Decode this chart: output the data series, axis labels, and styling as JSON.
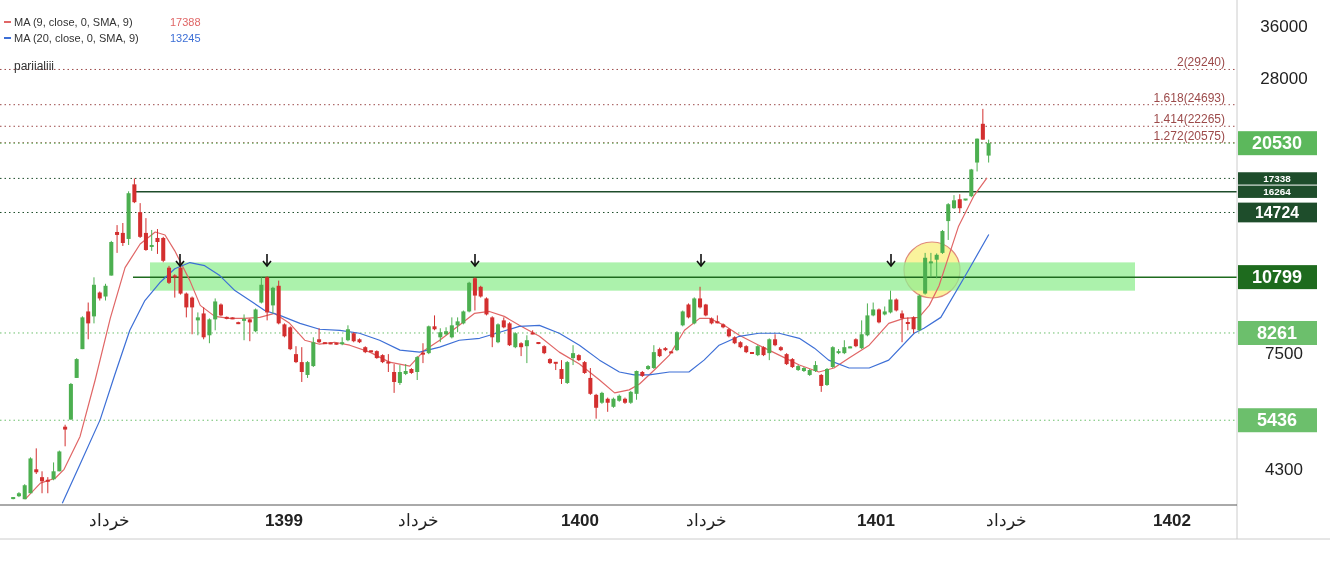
{
  "chart_data": {
    "type": "candlestick",
    "log": true,
    "legend": "top left",
    "xlim": [
      1398.0405,
      1402.2196
    ],
    "xticks": [
      {
        "value": 1398.412,
        "label": "خرداد"
      },
      1399,
      {
        "value": 1399.453,
        "label": "خرداد"
      },
      1400,
      {
        "value": 1400.426,
        "label": "خرداد"
      },
      1401,
      {
        "value": 1401.44,
        "label": "خرداد"
      },
      1402
    ],
    "ylim": [
      3620,
      40800
    ],
    "yticks": [
      36000,
      28000,
      7500,
      4300
    ],
    "x": [
      1398.085,
      1398.1045,
      1398.124,
      1398.1435,
      1398.163,
      1398.1825,
      1398.202,
      1398.2215,
      1398.241,
      1398.2605,
      1398.28,
      1398.2995,
      1398.319,
      1398.3385,
      1398.358,
      1398.3775,
      1398.397,
      1398.4165,
      1398.436,
      1398.4555,
      1398.475,
      1398.4945,
      1398.514,
      1398.5335,
      1398.553,
      1398.5725,
      1398.592,
      1398.6115,
      1398.631,
      1398.6505,
      1398.67,
      1398.6895,
      1398.709,
      1398.7285,
      1398.748,
      1398.7675,
      1398.787,
      1398.8065,
      1398.826,
      1398.8455,
      1398.865,
      1398.8845,
      1398.904,
      1398.9235,
      1398.943,
      1398.9625,
      1398.982,
      1399.0015,
      1399.021,
      1399.0405,
      1399.06,
      1399.0795,
      1399.099,
      1399.1185,
      1399.138,
      1399.1575,
      1399.177,
      1399.1965,
      1399.216,
      1399.2355,
      1399.255,
      1399.2745,
      1399.294,
      1399.3135,
      1399.333,
      1399.3525,
      1399.372,
      1399.3915,
      1399.411,
      1399.4305,
      1399.45,
      1399.4695,
      1399.489,
      1399.5085,
      1399.528,
      1399.5475,
      1399.567,
      1399.5865,
      1399.606,
      1399.6255,
      1399.645,
      1399.6645,
      1399.684,
      1399.7035,
      1399.723,
      1399.7425,
      1399.762,
      1399.7815,
      1399.801,
      1399.8205,
      1399.84,
      1399.8595,
      1399.879,
      1399.8985,
      1399.918,
      1399.9375,
      1399.957,
      1399.9765,
      1399.996,
      1400.0155,
      1400.035,
      1400.0545,
      1400.074,
      1400.0935,
      1400.113,
      1400.1325,
      1400.152,
      1400.1715,
      1400.191,
      1400.2105,
      1400.23,
      1400.2495,
      1400.269,
      1400.2885,
      1400.308,
      1400.3275,
      1400.347,
      1400.3665,
      1400.386,
      1400.4055,
      1400.425,
      1400.4445,
      1400.464,
      1400.4835,
      1400.503,
      1400.5225,
      1400.542,
      1400.5615,
      1400.581,
      1400.6005,
      1400.62,
      1400.6395,
      1400.659,
      1400.6785,
      1400.698,
      1400.7175,
      1400.737,
      1400.7565,
      1400.776,
      1400.7955,
      1400.815,
      1400.8345,
      1400.854,
      1400.8735,
      1400.893,
      1400.9125,
      1400.932,
      1400.9515,
      1400.971,
      1400.9905,
      1401.01,
      1401.0295,
      1401.049,
      1401.0685,
      1401.088,
      1401.1075,
      1401.127,
      1401.1465,
      1401.166,
      1401.1855,
      1401.205,
      1401.2245,
      1401.244,
      1401.2635,
      1401.283,
      1401.3025,
      1401.322,
      1401.3415,
      1401.361,
      1401.3805
    ],
    "colors": [
      "#4caf50",
      "#4caf50",
      "#4caf50",
      "#4caf50",
      "#d32f2f",
      "#d32f2f",
      "#d32f2f",
      "#4caf50",
      "#4caf50",
      "#d32f2f",
      "#4caf50",
      "#4caf50",
      "#4caf50",
      "#d32f2f",
      "#4caf50",
      "#d32f2f",
      "#4caf50",
      "#4caf50",
      "#d32f2f",
      "#d32f2f",
      "#4caf50",
      "#d32f2f",
      "#d32f2f",
      "#d32f2f",
      "#4caf50",
      "#d32f2f",
      "#d32f2f",
      "#d32f2f",
      "#d32f2f",
      "#d32f2f",
      "#d32f2f",
      "#d32f2f",
      "#4caf50",
      "#d32f2f",
      "#4caf50",
      "#4caf50",
      "#d32f2f",
      "#d32f2f",
      "#d32f2f",
      "#d32f2f",
      "#4caf50",
      "#d32f2f",
      "#4caf50",
      "#4caf50",
      "#d32f2f",
      "#4caf50",
      "#d32f2f",
      "#d32f2f",
      "#d32f2f",
      "#d32f2f",
      "#d32f2f",
      "#4caf50",
      "#4caf50",
      "#d32f2f",
      "#d32f2f",
      "#d32f2f",
      "#d32f2f",
      "#4caf50",
      "#4caf50",
      "#d32f2f",
      "#d32f2f",
      "#d32f2f",
      "#d32f2f",
      "#d32f2f",
      "#d32f2f",
      "#d32f2f",
      "#d32f2f",
      "#4caf50",
      "#4caf50",
      "#d32f2f",
      "#4caf50",
      "#d32f2f",
      "#4caf50",
      "#d32f2f",
      "#4caf50",
      "#4caf50",
      "#4caf50",
      "#4caf50",
      "#4caf50",
      "#4caf50",
      "#d32f2f",
      "#d32f2f",
      "#d32f2f",
      "#d32f2f",
      "#4caf50",
      "#d32f2f",
      "#d32f2f",
      "#4caf50",
      "#d32f2f",
      "#4caf50",
      "#d32f2f",
      "#d32f2f",
      "#d32f2f",
      "#d32f2f",
      "#d32f2f",
      "#d32f2f",
      "#4caf50",
      "#4caf50",
      "#d32f2f",
      "#d32f2f",
      "#d32f2f",
      "#d32f2f",
      "#4caf50",
      "#d32f2f",
      "#4caf50",
      "#4caf50",
      "#d32f2f",
      "#4caf50",
      "#4caf50",
      "#d32f2f",
      "#4caf50",
      "#4caf50",
      "#d32f2f",
      "#d32f2f",
      "#d32f2f",
      "#4caf50",
      "#4caf50",
      "#d32f2f",
      "#4caf50",
      "#d32f2f",
      "#d32f2f",
      "#d32f2f",
      "#d32f2f",
      "#d32f2f",
      "#d32f2f",
      "#d32f2f",
      "#d32f2f",
      "#d32f2f",
      "#d32f2f",
      "#4caf50",
      "#d32f2f",
      "#4caf50",
      "#d32f2f",
      "#d32f2f",
      "#d32f2f",
      "#d32f2f",
      "#4caf50",
      "#4caf50",
      "#4caf50",
      "#4caf50",
      "#d32f2f",
      "#4caf50",
      "#4caf50",
      "#4caf50",
      "#4caf50",
      "#4caf50",
      "#d32f2f",
      "#4caf50",
      "#4caf50",
      "#4caf50",
      "#d32f2f",
      "#4caf50",
      "#4caf50",
      "#d32f2f",
      "#d32f2f",
      "#d32f2f",
      "#d32f2f",
      "#4caf50",
      "#4caf50",
      "#4caf50",
      "#4caf50",
      "#4caf50",
      "#4caf50",
      "#4caf50",
      "#d32f2f",
      "#4caf50",
      "#4caf50",
      "#4caf50",
      "#d32f2f",
      "#4caf50"
    ],
    "ohlc": [
      [
        3740,
        3760,
        3720,
        3745
      ],
      [
        3776,
        3850,
        3760,
        3830
      ],
      [
        3722,
        4000,
        3722,
        3980
      ],
      [
        3830,
        4550,
        3830,
        4526
      ],
      [
        4296,
        4750,
        4200,
        4235
      ],
      [
        4137,
        4255,
        3830,
        4056
      ],
      [
        4076,
        4137,
        3830,
        4056
      ],
      [
        4095,
        4440,
        4076,
        4255
      ],
      [
        4255,
        4700,
        4255,
        4680
      ],
      [
        5270,
        5320,
        4797,
        5198
      ],
      [
        5452,
        6500,
        5452,
        6469
      ],
      [
        6659,
        7320,
        6659,
        7289
      ],
      [
        7645,
        8950,
        7645,
        8903
      ],
      [
        9160,
        9560,
        8015,
        8651
      ],
      [
        8946,
        10790,
        8651,
        10410
      ],
      [
        10030,
        10080,
        9653,
        9750
      ],
      [
        9840,
        10460,
        9653,
        10360
      ],
      [
        10880,
        12850,
        10880,
        12780
      ],
      [
        13410,
        13860,
        12130,
        13220
      ],
      [
        13350,
        14000,
        12540,
        12720
      ],
      [
        12970,
        16300,
        12600,
        16150
      ],
      [
        16850,
        17340,
        15400,
        15470
      ],
      [
        14750,
        15400,
        13030,
        13100
      ],
      [
        13350,
        14330,
        12250,
        12300
      ],
      [
        12480,
        13540,
        12250,
        12600
      ],
      [
        13030,
        13600,
        12070,
        12780
      ],
      [
        13030,
        13100,
        11600,
        11680
      ],
      [
        11300,
        11400,
        10450,
        10510
      ],
      [
        10880,
        10950,
        9790,
        10790
      ],
      [
        11300,
        11400,
        9930,
        9980
      ],
      [
        9980,
        10030,
        8903,
        9340
      ],
      [
        9790,
        9840,
        8210,
        9340
      ],
      [
        8776,
        9117,
        8170,
        8903
      ],
      [
        9073,
        9340,
        8015,
        8092
      ],
      [
        8170,
        8860,
        7865,
        8818
      ],
      [
        8818,
        9750,
        8368,
        9610
      ],
      [
        9470,
        9520,
        8950,
        8988
      ],
      [
        8903,
        8940,
        8820,
        8860
      ],
      [
        8870,
        8900,
        8830,
        8850
      ],
      [
        8680,
        8720,
        8620,
        8640
      ],
      [
        8776,
        9030,
        7979,
        8818
      ],
      [
        8818,
        8860,
        7941,
        8693
      ],
      [
        8330,
        9290,
        8290,
        9248
      ],
      [
        9560,
        10790,
        9520,
        10410
      ],
      [
        10790,
        10840,
        8776,
        9117
      ],
      [
        9430,
        10310,
        9073,
        10260
      ],
      [
        10360,
        10620,
        8610,
        8651
      ],
      [
        8610,
        8650,
        8090,
        8131
      ],
      [
        8489,
        8530,
        7610,
        7645
      ],
      [
        7464,
        7754,
        7150,
        7184
      ],
      [
        7184,
        7717,
        6531,
        6851
      ],
      [
        6755,
        7220,
        6659,
        7184
      ],
      [
        7049,
        8092,
        7016,
        7903
      ],
      [
        8015,
        8450,
        7865,
        7903
      ],
      [
        7870,
        7900,
        7840,
        7865
      ],
      [
        7865,
        7890,
        7830,
        7850
      ],
      [
        7865,
        7880,
        7810,
        7828
      ],
      [
        7828,
        8092,
        7790,
        7903
      ],
      [
        7979,
        8570,
        7941,
        8410
      ],
      [
        8250,
        8290,
        7903,
        7941
      ],
      [
        8015,
        8050,
        7870,
        7903
      ],
      [
        7717,
        7750,
        7500,
        7536
      ],
      [
        7572,
        7600,
        7550,
        7560
      ],
      [
        7572,
        7600,
        7300,
        7324
      ],
      [
        7429,
        7460,
        7150,
        7184
      ],
      [
        7184,
        7464,
        6851,
        7150
      ],
      [
        6851,
        7116,
        6198,
        6531
      ],
      [
        6500,
        7083,
        6438,
        6851
      ],
      [
        6787,
        7116,
        6750,
        6884
      ],
      [
        6950,
        6980,
        6790,
        6819
      ],
      [
        6851,
        7400,
        6593,
        7359
      ],
      [
        7500,
        7865,
        7150,
        7464
      ],
      [
        7500,
        8560,
        7464,
        8529
      ],
      [
        8529,
        8988,
        8370,
        8410
      ],
      [
        8092,
        8450,
        7903,
        8290
      ],
      [
        8210,
        8489,
        8170,
        8330
      ],
      [
        8092,
        8903,
        8050,
        8570
      ],
      [
        8570,
        8903,
        8290,
        8734
      ],
      [
        8651,
        9200,
        8610,
        9160
      ],
      [
        9160,
        10560,
        9120,
        10510
      ],
      [
        10740,
        10790,
        9204,
        9885
      ],
      [
        10310,
        10360,
        9790,
        9840
      ],
      [
        9750,
        9800,
        8988,
        9030
      ],
      [
        8903,
        8950,
        7717,
        8092
      ],
      [
        7903,
        8650,
        7865,
        8610
      ],
      [
        8776,
        8903,
        8450,
        8489
      ],
      [
        8651,
        8700,
        7760,
        7791
      ],
      [
        7717,
        8290,
        7680,
        8250
      ],
      [
        7865,
        7903,
        7394,
        7717
      ],
      [
        7754,
        8170,
        7150,
        7979
      ],
      [
        8250,
        8368,
        8210,
        8230
      ],
      [
        7880,
        7910,
        7830,
        7865
      ],
      [
        7754,
        7790,
        7464,
        7500
      ],
      [
        7289,
        7320,
        7116,
        7150
      ],
      [
        7170,
        7184,
        6916,
        7150
      ],
      [
        6950,
        7252,
        6469,
        6627
      ],
      [
        6500,
        7220,
        6469,
        7184
      ],
      [
        7324,
        7791,
        7083,
        7500
      ],
      [
        7429,
        7460,
        7220,
        7252
      ],
      [
        7184,
        7220,
        6790,
        6819
      ],
      [
        6659,
        6983,
        6140,
        6170
      ],
      [
        6140,
        6170,
        5478,
        5771
      ],
      [
        5912,
        6230,
        5880,
        6198
      ],
      [
        6026,
        6060,
        5660,
        5912
      ],
      [
        5798,
        6060,
        5770,
        6026
      ],
      [
        5968,
        6150,
        5940,
        6112
      ],
      [
        6026,
        6060,
        5880,
        5912
      ],
      [
        5912,
        6260,
        5880,
        6228
      ],
      [
        6170,
        6900,
        5997,
        6884
      ],
      [
        6851,
        6884,
        6690,
        6723
      ],
      [
        6950,
        7083,
        6916,
        7049
      ],
      [
        6983,
        7791,
        6950,
        7536
      ],
      [
        7645,
        7700,
        7360,
        7394
      ],
      [
        7681,
        7720,
        7572,
        7608
      ],
      [
        7536,
        7572,
        7500,
        7520
      ],
      [
        7608,
        8330,
        7572,
        8290
      ],
      [
        8570,
        9200,
        8530,
        9160
      ],
      [
        9470,
        9520,
        8860,
        8903
      ],
      [
        8651,
        9800,
        8610,
        9750
      ],
      [
        9750,
        10310,
        9290,
        9340
      ],
      [
        9470,
        9500,
        8950,
        8988
      ],
      [
        8860,
        8900,
        8610,
        8651
      ],
      [
        8700,
        8988,
        8650,
        8693
      ],
      [
        8610,
        8650,
        8450,
        8489
      ],
      [
        8410,
        8450,
        8090,
        8131
      ],
      [
        8092,
        8130,
        7830,
        7865
      ],
      [
        7903,
        7940,
        7680,
        7717
      ],
      [
        7754,
        7790,
        7500,
        7536
      ],
      [
        7510,
        7536,
        7480,
        7500
      ],
      [
        7429,
        7790,
        7394,
        7754
      ],
      [
        7717,
        7750,
        7394,
        7429
      ],
      [
        7500,
        8050,
        7252,
        8015
      ],
      [
        8015,
        8210,
        7754,
        7791
      ],
      [
        7717,
        7754,
        7572,
        7608
      ],
      [
        7464,
        7500,
        7083,
        7116
      ],
      [
        7289,
        7324,
        6983,
        7016
      ],
      [
        6916,
        7083,
        6884,
        7049
      ],
      [
        6884,
        7016,
        6851,
        6983
      ],
      [
        6755,
        6950,
        6723,
        6916
      ],
      [
        6884,
        7218,
        6851,
        7083
      ],
      [
        6755,
        6787,
        6228,
        6408
      ],
      [
        6438,
        6983,
        6408,
        6950
      ],
      [
        7016,
        7754,
        6983,
        7717
      ],
      [
        7500,
        7650,
        7464,
        7572
      ],
      [
        7500,
        7979,
        7464,
        7717
      ],
      [
        7700,
        7754,
        7681,
        7717
      ],
      [
        8015,
        8053,
        7717,
        7754
      ],
      [
        7681,
        8776,
        7645,
        8210
      ],
      [
        8170,
        9520,
        8131,
        8988
      ],
      [
        8988,
        9560,
        8950,
        9248
      ],
      [
        9248,
        9290,
        8650,
        8693
      ],
      [
        9030,
        9380,
        8988,
        9160
      ],
      [
        9117,
        10120,
        9073,
        9700
      ],
      [
        9700,
        9750,
        9160,
        9204
      ],
      [
        9073,
        9204,
        7903,
        8860
      ],
      [
        8680,
        8903,
        8368,
        8651
      ],
      [
        8903,
        8950,
        8250,
        8410
      ],
      [
        8368,
        9930,
        8330,
        9885
      ],
      [
        9980,
        12130,
        9930,
        11850
      ],
      [
        11580,
        12130,
        10790,
        11600
      ],
      [
        11740,
        12100,
        10740,
        12020
      ],
      [
        12130,
        13540,
        12070,
        13470
      ],
      [
        14130,
        15400,
        12906,
        15320
      ],
      [
        15030,
        16000,
        14980,
        15610
      ],
      [
        15690,
        16070,
        14680,
        15030
      ],
      [
        15650,
        15700,
        15600,
        15690
      ],
      [
        15920,
        18150,
        15850,
        18100
      ],
      [
        18710,
        21000,
        17928,
        20980
      ],
      [
        22530,
        24200,
        20880,
        20880
      ],
      [
        19345,
        20880,
        18710,
        20530
      ]
    ],
    "series": [
      {
        "type": "line",
        "name": "MA (9, close, 0, SMA, 9)",
        "color": "#e06666",
        "x": [
          1398.126,
          1398.177,
          1398.227,
          1398.257,
          1398.311,
          1398.362,
          1398.413,
          1398.463,
          1398.514,
          1398.565,
          1398.598,
          1398.631,
          1398.682,
          1398.717,
          1398.766,
          1398.816,
          1398.867,
          1398.918,
          1398.968,
          1399.019,
          1399.07,
          1399.12,
          1399.171,
          1399.222,
          1399.29,
          1399.356,
          1399.425,
          1399.475,
          1399.526,
          1399.592,
          1399.643,
          1399.694,
          1399.744,
          1399.795,
          1399.863,
          1399.93,
          1399.998,
          1400.066,
          1400.117,
          1400.166,
          1400.201,
          1400.251,
          1400.302,
          1400.353,
          1400.404,
          1400.437,
          1400.487,
          1400.538,
          1400.604,
          1400.673,
          1400.741,
          1400.807,
          1400.858,
          1400.909,
          1400.977,
          1401.043,
          1401.094,
          1401.145,
          1401.18,
          1401.213,
          1401.246,
          1401.279,
          1401.33,
          1401.375
        ],
        "values": [
          3722,
          4020,
          4116,
          4296,
          5030,
          6593,
          8860,
          11300,
          12660,
          13410,
          13220,
          12250,
          10620,
          9430,
          8946,
          8860,
          8860,
          8903,
          9073,
          8651,
          7979,
          7828,
          7903,
          7791,
          7536,
          7184,
          7049,
          7608,
          7979,
          8570,
          9073,
          9160,
          8946,
          8570,
          8131,
          7536,
          7116,
          6593,
          6198,
          6288,
          6469,
          6916,
          7429,
          8368,
          8860,
          8860,
          8570,
          8170,
          7791,
          7429,
          7083,
          6851,
          6983,
          7324,
          7791,
          8651,
          8860,
          8903,
          9430,
          10360,
          11960,
          13790,
          15920,
          17388
        ]
      },
      {
        "type": "line",
        "name": "MA (20, close, 0, SMA, 9)",
        "color": "#3d6fd6",
        "x": [
          1398.251,
          1398.311,
          1398.379,
          1398.428,
          1398.479,
          1398.53,
          1398.58,
          1398.631,
          1398.682,
          1398.732,
          1398.783,
          1398.834,
          1398.885,
          1398.935,
          1398.986,
          1399.054,
          1399.12,
          1399.189,
          1399.255,
          1399.323,
          1399.392,
          1399.458,
          1399.526,
          1399.592,
          1399.661,
          1399.729,
          1399.795,
          1399.863,
          1399.93,
          1399.998,
          1400.066,
          1400.133,
          1400.183,
          1400.234,
          1400.302,
          1400.368,
          1400.419,
          1400.47,
          1400.538,
          1400.604,
          1400.673,
          1400.741,
          1400.792,
          1400.84,
          1400.909,
          1400.977,
          1401.043,
          1401.129,
          1401.162,
          1401.219,
          1401.306,
          1401.381
        ],
        "values": [
          3650,
          4400,
          5452,
          6755,
          8368,
          9653,
          10510,
          11240,
          11580,
          11410,
          10880,
          10123,
          9653,
          9204,
          8988,
          8651,
          8410,
          8368,
          8250,
          7979,
          7608,
          7536,
          7717,
          7979,
          8053,
          8290,
          8529,
          8570,
          8250,
          7791,
          7252,
          6851,
          6755,
          6755,
          6851,
          6851,
          7252,
          7791,
          8131,
          8250,
          8250,
          8053,
          7681,
          7252,
          6983,
          6983,
          7252,
          8250,
          8450,
          8903,
          10990,
          13245
        ]
      }
    ],
    "ref_lines": [
      {
        "axis": "y",
        "value": 29240,
        "color": "#9c4a4a",
        "line_style": "dotted"
      },
      {
        "axis": "y",
        "value": 24693,
        "color": "#9c4a4a",
        "line_style": "dotted"
      },
      {
        "axis": "y",
        "value": 22265,
        "color": "#9c4a4a",
        "line_style": "dotted"
      },
      {
        "axis": "y",
        "value": 20575,
        "color": "#9c4a4a",
        "line_style": "dotted"
      },
      {
        "axis": "y",
        "value": 20530,
        "label": "20530",
        "color": "#5cb85c",
        "line_style": "dotted"
      },
      {
        "axis": "y",
        "value": 17338,
        "label": "17338",
        "color": "#1e4d2b",
        "line_style": "dotted"
      },
      {
        "axis": "y",
        "value": 16264,
        "label": "16264",
        "color": "#1e4d2b",
        "line_style": "solid"
      },
      {
        "axis": "y",
        "value": 14724,
        "label": "14724",
        "color": "#1e4d2b",
        "line_style": "dotted"
      },
      {
        "axis": "y",
        "value": 10799,
        "label": "10799",
        "color": "#1e6b1e",
        "line_style": "solid"
      },
      {
        "axis": "y",
        "value": 8261,
        "label": "8261",
        "color": "#6cbf6c",
        "line_style": "dotted"
      },
      {
        "axis": "y",
        "value": 5436,
        "label": "5436",
        "color": "#6cbf6c",
        "line_style": "dotted"
      }
    ],
    "bands": [
      {
        "axis": "y",
        "from": 10120,
        "to": 11590,
        "color": "#90ee90"
      }
    ],
    "annotations": [
      "17388",
      "13245",
      "pariialiii",
      "2(29240)",
      "1.618(24693)",
      "1.414(22265)",
      "1.272(20575)"
    ]
  }
}
